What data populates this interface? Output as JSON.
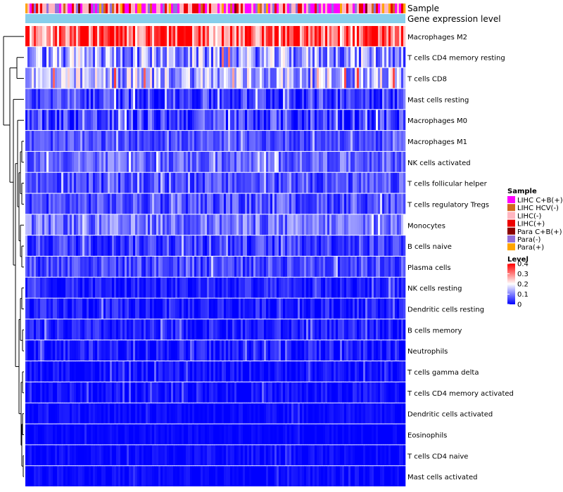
{
  "chart_data": {
    "type": "heatmap",
    "annotation_tracks": [
      "Sample",
      "Gene expression level"
    ],
    "rows": [
      {
        "label": "Macrophages M2",
        "mean": 0.32,
        "spread": 0.12
      },
      {
        "label": "T cells CD4 memory resting",
        "mean": 0.12,
        "spread": 0.1
      },
      {
        "label": "T cells CD8",
        "mean": 0.14,
        "spread": 0.1
      },
      {
        "label": "Mast cells resting",
        "mean": 0.05,
        "spread": 0.06
      },
      {
        "label": "Macrophages M0",
        "mean": 0.05,
        "spread": 0.07
      },
      {
        "label": "Macrophages M1",
        "mean": 0.06,
        "spread": 0.04
      },
      {
        "label": "NK cells activated",
        "mean": 0.08,
        "spread": 0.05
      },
      {
        "label": "T cells follicular helper",
        "mean": 0.06,
        "spread": 0.05
      },
      {
        "label": "T cells regulatory  Tregs",
        "mean": 0.06,
        "spread": 0.05
      },
      {
        "label": "Monocytes",
        "mean": 0.09,
        "spread": 0.06
      },
      {
        "label": "B cells naive",
        "mean": 0.05,
        "spread": 0.05
      },
      {
        "label": "Plasma cells",
        "mean": 0.06,
        "spread": 0.05
      },
      {
        "label": "NK cells resting",
        "mean": 0.02,
        "spread": 0.04
      },
      {
        "label": "Dendritic cells resting",
        "mean": 0.02,
        "spread": 0.04
      },
      {
        "label": "B cells memory",
        "mean": 0.02,
        "spread": 0.04
      },
      {
        "label": "Neutrophils",
        "mean": 0.02,
        "spread": 0.04
      },
      {
        "label": "T cells gamma delta",
        "mean": 0.01,
        "spread": 0.03
      },
      {
        "label": "T cells CD4 memory activated",
        "mean": 0.01,
        "spread": 0.03
      },
      {
        "label": "Dendritic cells activated",
        "mean": 0.005,
        "spread": 0.02
      },
      {
        "label": "Eosinophils",
        "mean": 0.003,
        "spread": 0.015
      },
      {
        "label": "T cells CD4 naive",
        "mean": 0.005,
        "spread": 0.02
      },
      {
        "label": "Mast cells activated",
        "mean": 0.005,
        "spread": 0.02
      }
    ],
    "sample_legend": {
      "title": "Sample",
      "entries": [
        {
          "label": "LIHC C+B(+)",
          "color": "#ff00ff"
        },
        {
          "label": "LIHC HCV(-)",
          "color": "#d2691e"
        },
        {
          "label": "LIHC(-)",
          "color": "#ffb6c1"
        },
        {
          "label": "LIHC(+)",
          "color": "#ee0000"
        },
        {
          "label": "Para C+B(+)",
          "color": "#8b0000"
        },
        {
          "label": "Para(-)",
          "color": "#9370db"
        },
        {
          "label": "Para(+)",
          "color": "#ffa500"
        }
      ]
    },
    "level_legend": {
      "title": "Level",
      "ticks": [
        "0.4",
        "0.3",
        "0.2",
        "0.1",
        "0"
      ],
      "tick_values": [
        0.4,
        0.3,
        0.2,
        0.1,
        0
      ],
      "min": 0,
      "max": 0.4,
      "colors": [
        "#0000ff",
        "#ffffff",
        "#ff0000"
      ]
    },
    "expression_track_color": "#87ceeb",
    "n_samples": 180,
    "dendrogram_color": "#000000"
  }
}
